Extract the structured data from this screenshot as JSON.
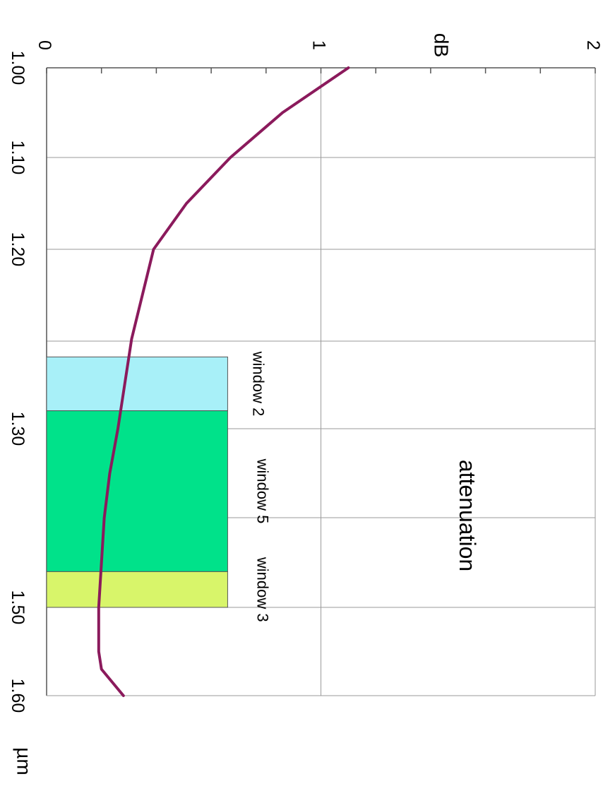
{
  "chart_data": {
    "type": "line",
    "orientation": "rotated-90-clockwise",
    "title": "attenuation",
    "xlabel": "µm",
    "ylabel": "dB",
    "xlim": [
      1.0,
      1.6
    ],
    "ylim": [
      0,
      2
    ],
    "x_ticks": [
      1.0,
      1.1,
      1.2,
      1.3,
      1.5,
      1.6
    ],
    "x_tick_labels": [
      "1.00",
      "1.10",
      "1.20",
      "1.30",
      "1.50",
      "1.60"
    ],
    "y_ticks": [
      0,
      1,
      2
    ],
    "y_tick_labels": [
      "0",
      "1",
      "2"
    ],
    "grid": true,
    "series": [
      {
        "color": "#8b1a5c",
        "points": [
          [
            1.0,
            1.1
          ],
          [
            1.05,
            0.86
          ],
          [
            1.1,
            0.67
          ],
          [
            1.15,
            0.51
          ],
          [
            1.2,
            0.39
          ],
          [
            1.25,
            0.31
          ],
          [
            1.3,
            0.26
          ],
          [
            1.35,
            0.23
          ],
          [
            1.4,
            0.21
          ],
          [
            1.45,
            0.2
          ],
          [
            1.5,
            0.19
          ],
          [
            1.55,
            0.19
          ],
          [
            1.57,
            0.2
          ],
          [
            1.6,
            0.28
          ]
        ]
      }
    ],
    "windows": [
      {
        "label": "window 2",
        "x_start": 1.26,
        "x_end": 1.29,
        "height": 0.66,
        "color": "#a8f0f8"
      },
      {
        "label": "window 5",
        "x_start": 1.29,
        "x_end": 1.46,
        "height": 0.66,
        "color": "#00e28a"
      },
      {
        "label": "window 3",
        "x_start": 1.46,
        "x_end": 1.5,
        "height": 0.66,
        "color": "#d8f56a"
      }
    ]
  }
}
